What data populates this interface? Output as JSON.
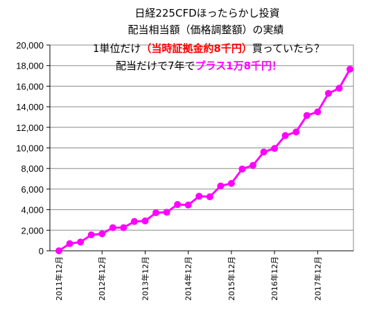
{
  "chart_data": {
    "type": "line",
    "title_lines": [
      "日経225CFDほったらかし投資",
      "配当相当額（価格調整額）の実績"
    ],
    "annotation": {
      "line1_prefix": "1単位だけ",
      "line1_highlight": "（当時証拠金約8千円）",
      "line1_suffix": "買っていたら？",
      "line2_prefix": "配当だけで7年で",
      "line2_highlight": "プラス1万8千円！"
    },
    "x_tick_labels": [
      "2011年12月",
      "2012年12月",
      "2013年12月",
      "2014年12月",
      "2015年12月",
      "2016年12月",
      "2017年12月"
    ],
    "y_tick_labels": [
      "0",
      "2,000",
      "4,000",
      "6,000",
      "8,000",
      "10,000",
      "12,000",
      "14,000",
      "16,000",
      "18,000",
      "20,000"
    ],
    "ylim": [
      0,
      20000
    ],
    "grid": true,
    "series": [
      {
        "color": "#ff00ff",
        "values": [
          0,
          700,
          850,
          1550,
          1650,
          2250,
          2250,
          2850,
          2900,
          3700,
          3750,
          4500,
          4450,
          5300,
          5250,
          6300,
          6550,
          7950,
          8300,
          9600,
          9950,
          11200,
          11550,
          13150,
          13500,
          15300,
          15800,
          17650
        ]
      }
    ]
  }
}
